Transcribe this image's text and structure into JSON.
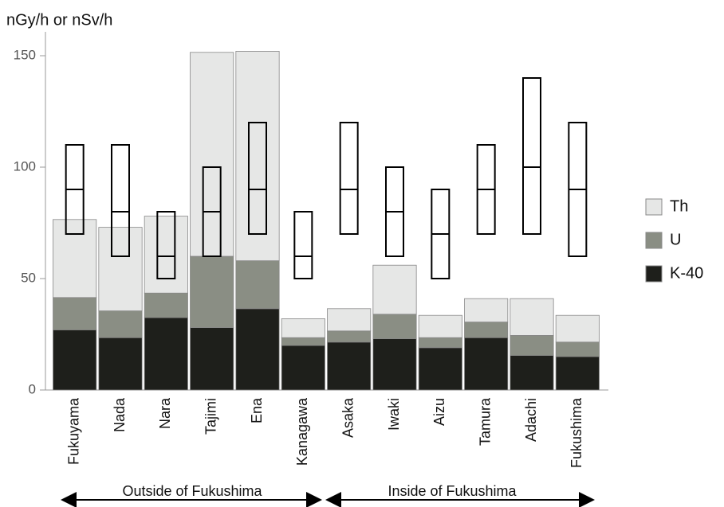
{
  "chart_data": {
    "type": "bar",
    "stacked": true,
    "y_label": "nGy/h or nSv/h",
    "categories": [
      "Fukuyama",
      "Nada",
      "Nara",
      "Tajimi",
      "Ena",
      "Kanagawa",
      "Asaka",
      "Iwaki",
      "Aizu",
      "Tamura",
      "Adachi",
      "Fukushima"
    ],
    "series": [
      {
        "name": "K-40",
        "color": "#1e1f1b",
        "values": [
          27,
          23.5,
          32.5,
          28,
          36.5,
          20,
          21.5,
          23,
          19,
          23.5,
          15.5,
          15
        ]
      },
      {
        "name": "U",
        "color": "#8a8e84",
        "values": [
          14.5,
          12,
          11,
          32,
          21.5,
          3.5,
          5,
          11,
          4.5,
          7,
          9,
          6.5
        ]
      },
      {
        "name": "Th",
        "color": "#e6e7e6",
        "values": [
          35,
          37.5,
          34.5,
          91.5,
          94,
          8.5,
          10,
          22,
          10,
          10.5,
          16.5,
          12
        ]
      }
    ],
    "range": {
      "min": [
        70,
        60,
        50,
        60,
        70,
        50,
        70,
        60,
        50,
        70,
        70,
        60
      ],
      "median": [
        90,
        80,
        60,
        80,
        90,
        60,
        90,
        80,
        70,
        90,
        100,
        90
      ],
      "max": [
        110,
        110,
        80,
        100,
        120,
        80,
        120,
        100,
        90,
        110,
        140,
        120
      ]
    },
    "ylim": [
      0,
      150
    ],
    "yticks": [
      0,
      50,
      100,
      150
    ],
    "annotations": [
      "Outside of Fukushima",
      "Inside of Fukushima"
    ]
  }
}
